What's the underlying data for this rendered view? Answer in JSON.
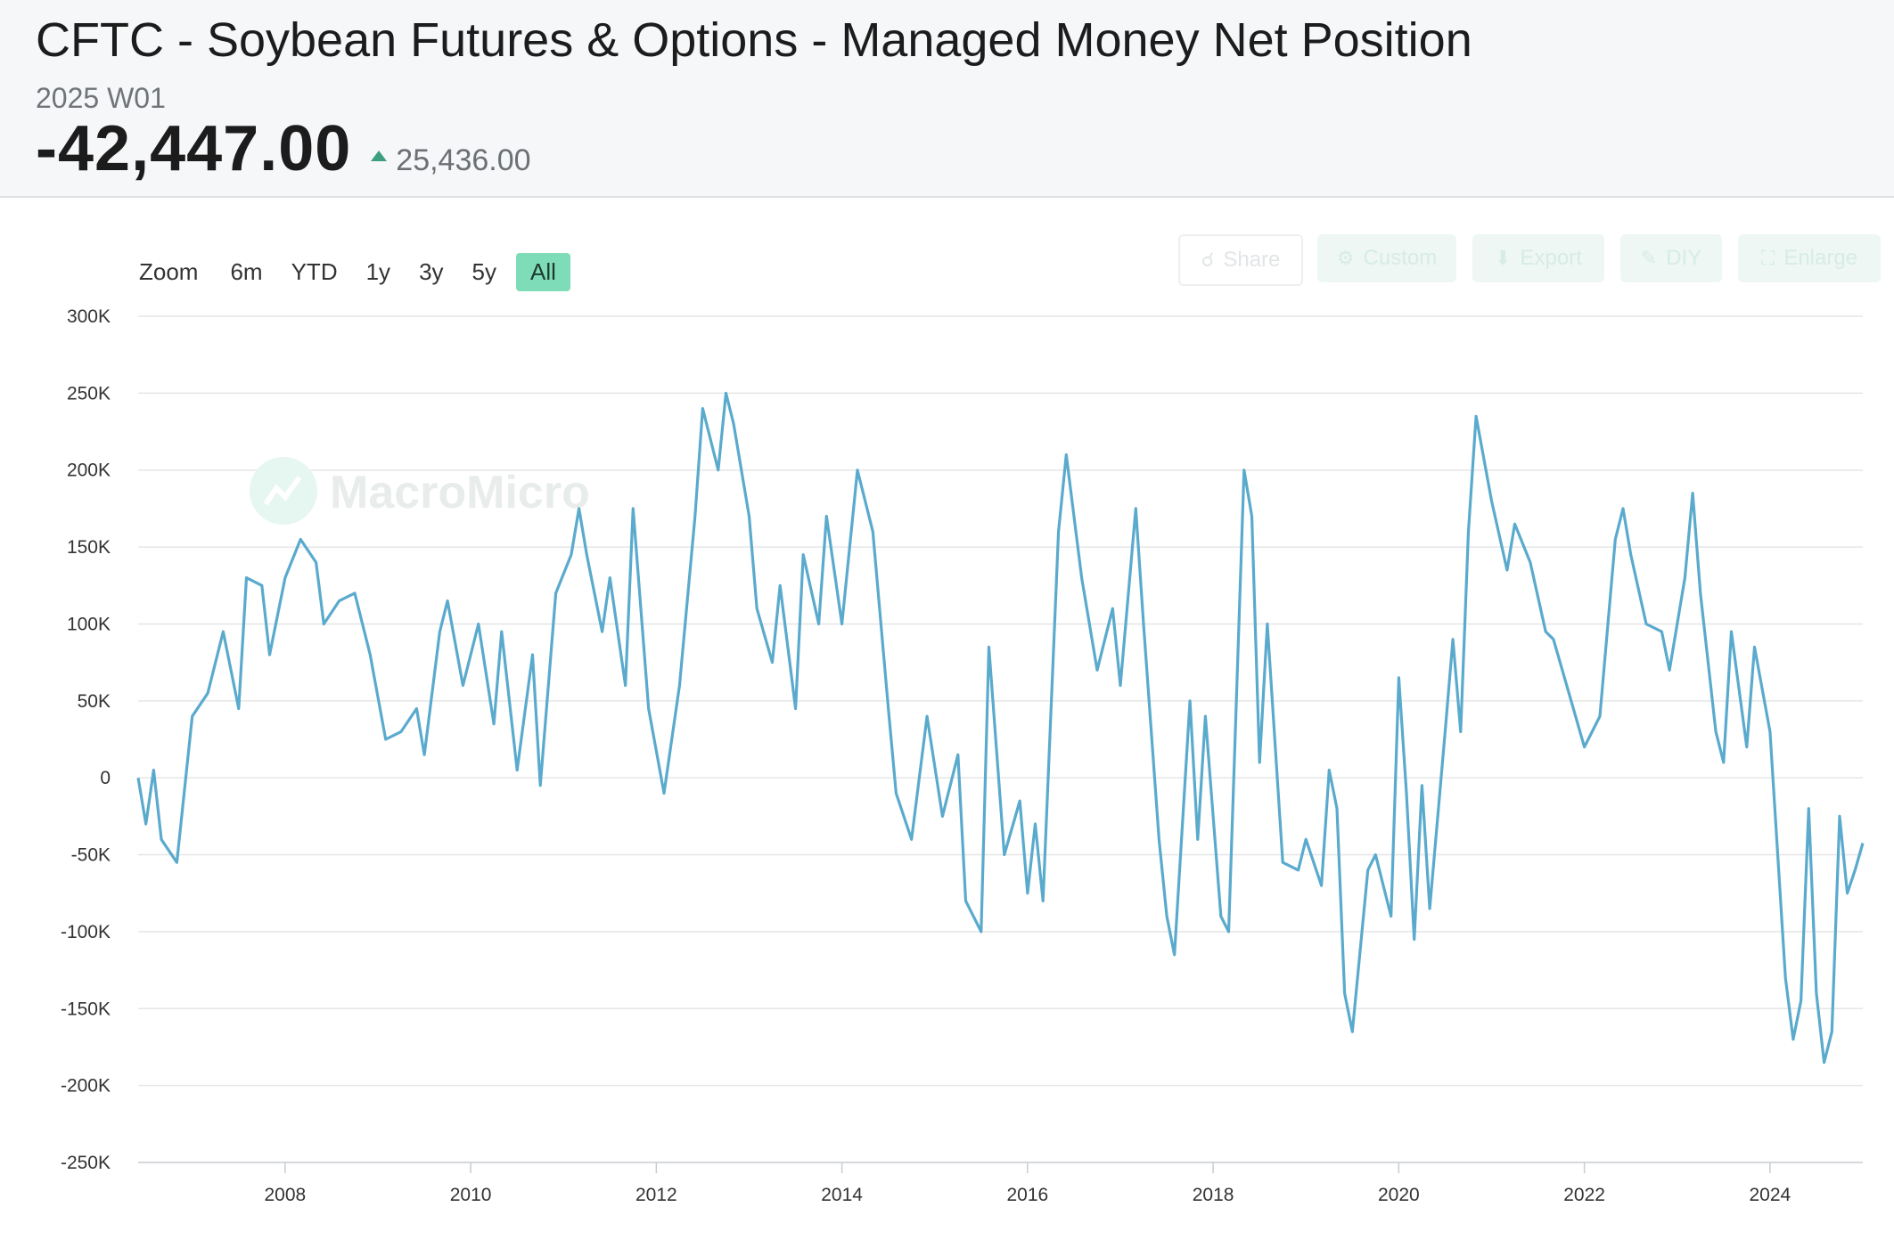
{
  "header": {
    "title": "CFTC - Soybean Futures & Options - Managed Money Net Position",
    "period": "2025 W01",
    "value": "-42,447.00",
    "change": "25,436.00",
    "change_color": "#3c9f7d"
  },
  "zoom": {
    "label": "Zoom",
    "buttons": [
      "6m",
      "YTD",
      "1y",
      "3y",
      "5y",
      "All"
    ],
    "active": "All"
  },
  "toolbar": {
    "share": "Share",
    "custom": "Custom",
    "export": "Export",
    "diy": "DIY",
    "enlarge": "Enlarge"
  },
  "watermark": "MacroMicro",
  "chart_data": {
    "type": "line",
    "title": "",
    "xlabel": "",
    "ylabel": "",
    "line_color": "#5aaacd",
    "grid": true,
    "ylim": [
      -250000,
      300000
    ],
    "xlim": [
      "2006-06",
      "2025-01"
    ],
    "y_ticks": [
      "300K",
      "250K",
      "200K",
      "150K",
      "100K",
      "50K",
      "0",
      "-50K",
      "-100K",
      "-150K",
      "-200K",
      "-250K"
    ],
    "x_ticks": [
      "2008",
      "2010",
      "2012",
      "2014",
      "2016",
      "2018",
      "2020",
      "2022",
      "2024"
    ],
    "series": [
      {
        "points": [
          [
            "2006-06",
            0
          ],
          [
            "2006-07",
            -30000
          ],
          [
            "2006-08",
            5000
          ],
          [
            "2006-09",
            -40000
          ],
          [
            "2006-11",
            -55000
          ],
          [
            "2007-01",
            40000
          ],
          [
            "2007-03",
            55000
          ],
          [
            "2007-05",
            95000
          ],
          [
            "2007-07",
            45000
          ],
          [
            "2007-08",
            130000
          ],
          [
            "2007-10",
            125000
          ],
          [
            "2007-11",
            80000
          ],
          [
            "2008-01",
            130000
          ],
          [
            "2008-03",
            155000
          ],
          [
            "2008-05",
            140000
          ],
          [
            "2008-06",
            100000
          ],
          [
            "2008-08",
            115000
          ],
          [
            "2008-10",
            120000
          ],
          [
            "2008-12",
            80000
          ],
          [
            "2009-02",
            25000
          ],
          [
            "2009-04",
            30000
          ],
          [
            "2009-06",
            45000
          ],
          [
            "2009-07",
            15000
          ],
          [
            "2009-09",
            95000
          ],
          [
            "2009-10",
            115000
          ],
          [
            "2009-12",
            60000
          ],
          [
            "2010-02",
            100000
          ],
          [
            "2010-04",
            35000
          ],
          [
            "2010-05",
            95000
          ],
          [
            "2010-07",
            5000
          ],
          [
            "2010-09",
            80000
          ],
          [
            "2010-10",
            -5000
          ],
          [
            "2010-12",
            120000
          ],
          [
            "2011-02",
            145000
          ],
          [
            "2011-03",
            175000
          ],
          [
            "2011-04",
            145000
          ],
          [
            "2011-06",
            95000
          ],
          [
            "2011-07",
            130000
          ],
          [
            "2011-09",
            60000
          ],
          [
            "2011-10",
            175000
          ],
          [
            "2011-12",
            45000
          ],
          [
            "2012-02",
            -10000
          ],
          [
            "2012-04",
            60000
          ],
          [
            "2012-06",
            170000
          ],
          [
            "2012-07",
            240000
          ],
          [
            "2012-09",
            200000
          ],
          [
            "2012-10",
            250000
          ],
          [
            "2012-11",
            230000
          ],
          [
            "2013-01",
            170000
          ],
          [
            "2013-02",
            110000
          ],
          [
            "2013-04",
            75000
          ],
          [
            "2013-05",
            125000
          ],
          [
            "2013-07",
            45000
          ],
          [
            "2013-08",
            145000
          ],
          [
            "2013-10",
            100000
          ],
          [
            "2013-11",
            170000
          ],
          [
            "2014-01",
            100000
          ],
          [
            "2014-03",
            200000
          ],
          [
            "2014-05",
            160000
          ],
          [
            "2014-07",
            45000
          ],
          [
            "2014-08",
            -10000
          ],
          [
            "2014-10",
            -40000
          ],
          [
            "2014-12",
            40000
          ],
          [
            "2015-02",
            -25000
          ],
          [
            "2015-04",
            15000
          ],
          [
            "2015-05",
            -80000
          ],
          [
            "2015-07",
            -100000
          ],
          [
            "2015-08",
            85000
          ],
          [
            "2015-10",
            -50000
          ],
          [
            "2015-12",
            -15000
          ],
          [
            "2016-01",
            -75000
          ],
          [
            "2016-02",
            -30000
          ],
          [
            "2016-03",
            -80000
          ],
          [
            "2016-05",
            160000
          ],
          [
            "2016-06",
            210000
          ],
          [
            "2016-08",
            130000
          ],
          [
            "2016-10",
            70000
          ],
          [
            "2016-12",
            110000
          ],
          [
            "2017-01",
            60000
          ],
          [
            "2017-03",
            175000
          ],
          [
            "2017-04",
            100000
          ],
          [
            "2017-06",
            -40000
          ],
          [
            "2017-07",
            -90000
          ],
          [
            "2017-08",
            -115000
          ],
          [
            "2017-10",
            50000
          ],
          [
            "2017-11",
            -40000
          ],
          [
            "2017-12",
            40000
          ],
          [
            "2018-02",
            -90000
          ],
          [
            "2018-03",
            -100000
          ],
          [
            "2018-05",
            200000
          ],
          [
            "2018-06",
            170000
          ],
          [
            "2018-07",
            10000
          ],
          [
            "2018-08",
            100000
          ],
          [
            "2018-10",
            -55000
          ],
          [
            "2018-12",
            -60000
          ],
          [
            "2019-01",
            -40000
          ],
          [
            "2019-03",
            -70000
          ],
          [
            "2019-04",
            5000
          ],
          [
            "2019-05",
            -20000
          ],
          [
            "2019-06",
            -140000
          ],
          [
            "2019-07",
            -165000
          ],
          [
            "2019-09",
            -60000
          ],
          [
            "2019-10",
            -50000
          ],
          [
            "2019-12",
            -90000
          ],
          [
            "2020-01",
            65000
          ],
          [
            "2020-02",
            -10000
          ],
          [
            "2020-03",
            -105000
          ],
          [
            "2020-04",
            -5000
          ],
          [
            "2020-05",
            -85000
          ],
          [
            "2020-07",
            30000
          ],
          [
            "2020-08",
            90000
          ],
          [
            "2020-09",
            30000
          ],
          [
            "2020-10",
            160000
          ],
          [
            "2020-11",
            235000
          ],
          [
            "2021-01",
            180000
          ],
          [
            "2021-03",
            135000
          ],
          [
            "2021-04",
            165000
          ],
          [
            "2021-06",
            140000
          ],
          [
            "2021-08",
            95000
          ],
          [
            "2021-09",
            90000
          ],
          [
            "2021-11",
            55000
          ],
          [
            "2022-01",
            20000
          ],
          [
            "2022-03",
            40000
          ],
          [
            "2022-05",
            155000
          ],
          [
            "2022-06",
            175000
          ],
          [
            "2022-07",
            145000
          ],
          [
            "2022-09",
            100000
          ],
          [
            "2022-11",
            95000
          ],
          [
            "2022-12",
            70000
          ],
          [
            "2023-02",
            130000
          ],
          [
            "2023-03",
            185000
          ],
          [
            "2023-04",
            120000
          ],
          [
            "2023-06",
            30000
          ],
          [
            "2023-07",
            10000
          ],
          [
            "2023-08",
            95000
          ],
          [
            "2023-10",
            20000
          ],
          [
            "2023-11",
            85000
          ],
          [
            "2024-01",
            30000
          ],
          [
            "2024-03",
            -130000
          ],
          [
            "2024-04",
            -170000
          ],
          [
            "2024-05",
            -145000
          ],
          [
            "2024-06",
            -20000
          ],
          [
            "2024-07",
            -140000
          ],
          [
            "2024-08",
            -185000
          ],
          [
            "2024-09",
            -165000
          ],
          [
            "2024-10",
            -25000
          ],
          [
            "2024-11",
            -75000
          ],
          [
            "2024-12",
            -60000
          ],
          [
            "2025-01",
            -42447
          ]
        ]
      }
    ]
  }
}
